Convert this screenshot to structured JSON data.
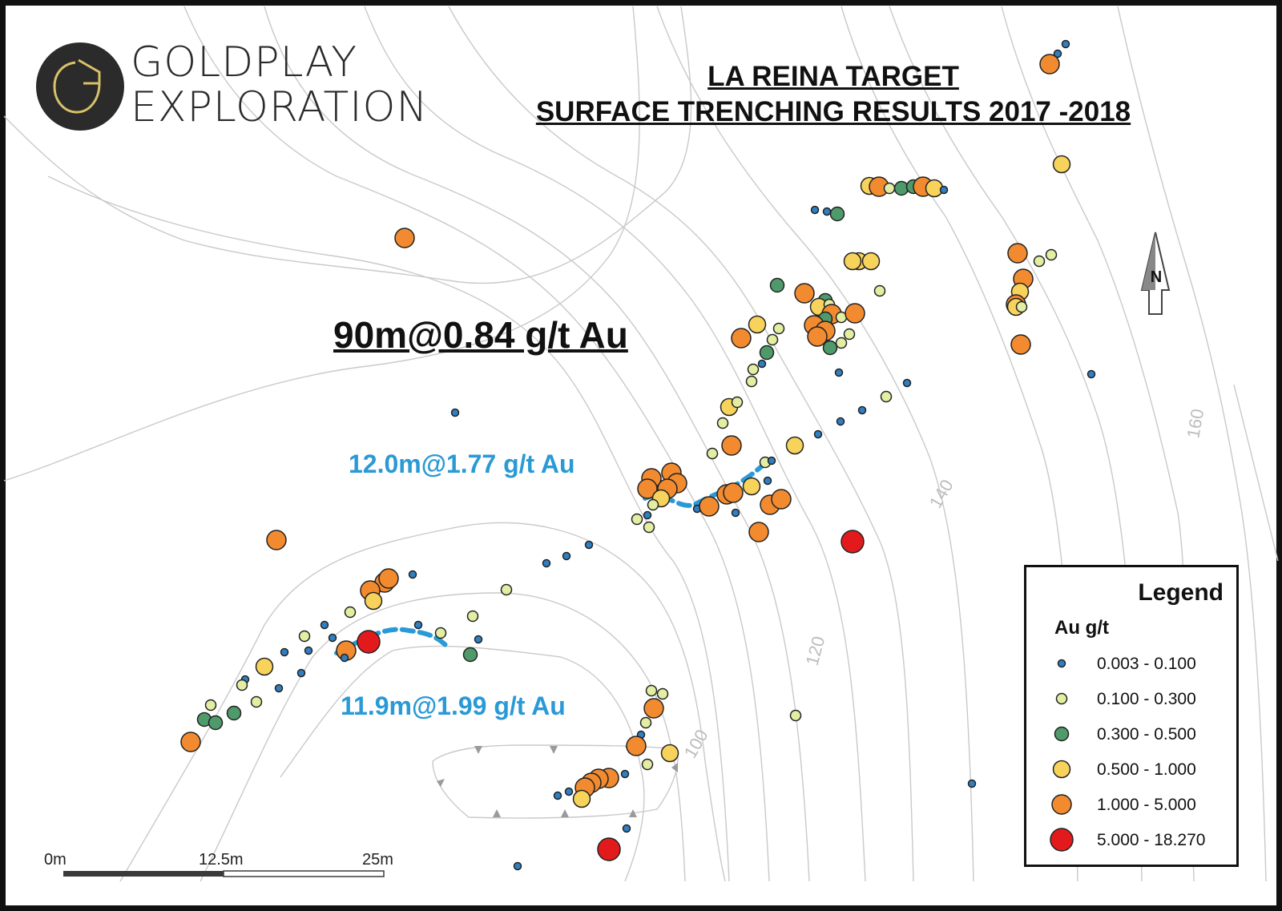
{
  "logo": {
    "line1": "GOLDPLAY",
    "line2": "EXPLORATION"
  },
  "title": {
    "line1": "LA REINA TARGET",
    "line2": "SURFACE TRENCHING RESULTS 2017 -2018"
  },
  "headline_result": "90m@0.84 g/t Au",
  "intercepts": [
    {
      "label": "12.0m@1.77 g/t Au",
      "color": "#2a9ad6"
    },
    {
      "label": "11.9m@1.99 g/t Au",
      "color": "#2a9ad6"
    }
  ],
  "contour_labels": [
    "100",
    "120",
    "140",
    "160"
  ],
  "north_arrow": "N",
  "scale_bar": [
    "0m",
    "12.5m",
    "25m"
  ],
  "legend": {
    "title": "Legend",
    "subtitle": "Au g/t",
    "classes": [
      {
        "label": "0.003 - 0.100",
        "color": "#2f7fc1"
      },
      {
        "label": "0.100 - 0.300",
        "color": "#e3eea3"
      },
      {
        "label": "0.300 - 0.500",
        "color": "#4f9a6b"
      },
      {
        "label": "0.500 - 1.000",
        "color": "#f7d35c"
      },
      {
        "label": "1.000 - 5.000",
        "color": "#f28a30"
      },
      {
        "label": "5.000 - 18.270",
        "color": "#e31a1c"
      }
    ]
  }
}
